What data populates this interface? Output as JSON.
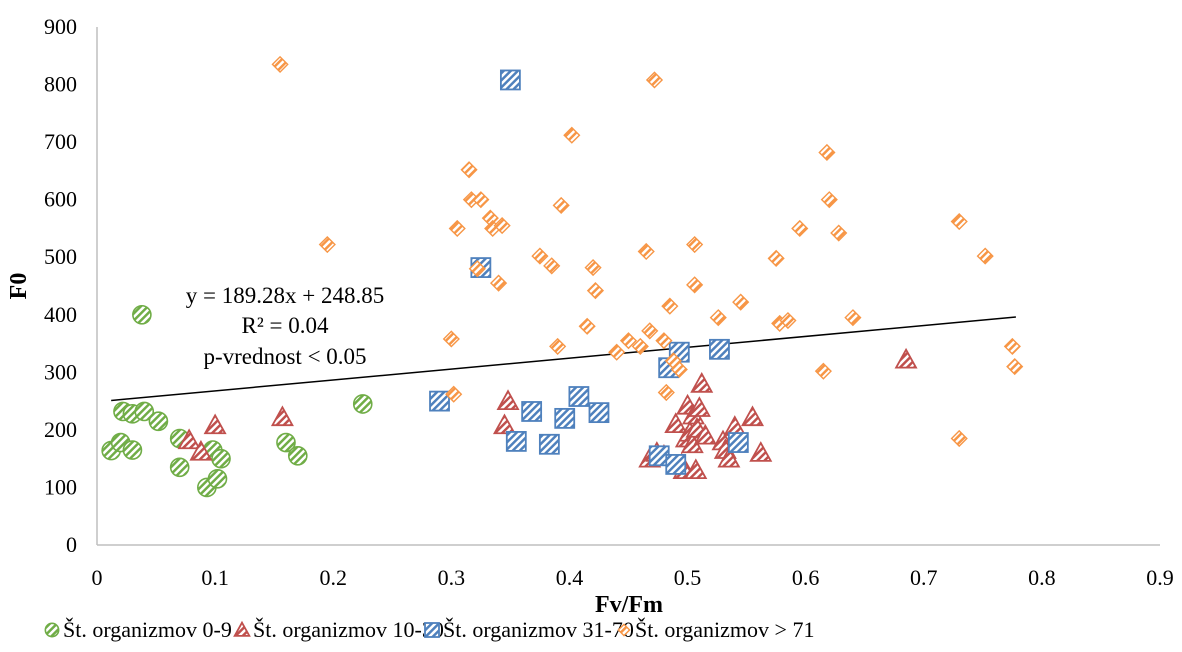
{
  "chart_data": {
    "type": "scatter",
    "xlabel": "Fv/Fm",
    "ylabel": "F0",
    "xlim": [
      0,
      0.9
    ],
    "ylim": [
      0,
      900
    ],
    "x_ticks": [
      "0",
      "0.1",
      "0.2",
      "0.3",
      "0.4",
      "0.5",
      "0.6",
      "0.7",
      "0.8",
      "0.9"
    ],
    "y_ticks": [
      "0",
      "100",
      "200",
      "300",
      "400",
      "500",
      "600",
      "700",
      "800",
      "900"
    ],
    "grid": false,
    "legend_position": "bottom",
    "annotations": [
      "y = 189.28x + 248.85",
      "R² = 0.04",
      "p-vrednost < 0.05"
    ],
    "trendline": {
      "slope": 189.28,
      "intercept": 248.85,
      "x_range": [
        0.012,
        0.778
      ],
      "color": "#000000"
    },
    "series": [
      {
        "name": "Št. organizmov 0-9",
        "marker": "circle",
        "color": "#70ad47",
        "points": [
          [
            0.012,
            164
          ],
          [
            0.02,
            178
          ],
          [
            0.022,
            232
          ],
          [
            0.03,
            228
          ],
          [
            0.03,
            165
          ],
          [
            0.038,
            400
          ],
          [
            0.04,
            232
          ],
          [
            0.052,
            215
          ],
          [
            0.07,
            185
          ],
          [
            0.07,
            135
          ],
          [
            0.093,
            100
          ],
          [
            0.098,
            165
          ],
          [
            0.102,
            115
          ],
          [
            0.105,
            150
          ],
          [
            0.16,
            178
          ],
          [
            0.17,
            155
          ],
          [
            0.225,
            245
          ]
        ]
      },
      {
        "name": "Št. organizmov 10-30",
        "marker": "triangle",
        "color": "#c0504d",
        "points": [
          [
            0.078,
            182
          ],
          [
            0.088,
            162
          ],
          [
            0.1,
            208
          ],
          [
            0.157,
            222
          ],
          [
            0.345,
            208
          ],
          [
            0.348,
            250
          ],
          [
            0.468,
            150
          ],
          [
            0.474,
            160
          ],
          [
            0.48,
            155
          ],
          [
            0.49,
            210
          ],
          [
            0.495,
            140
          ],
          [
            0.497,
            130
          ],
          [
            0.499,
            185
          ],
          [
            0.5,
            242
          ],
          [
            0.502,
            195
          ],
          [
            0.504,
            175
          ],
          [
            0.505,
            225
          ],
          [
            0.507,
            130
          ],
          [
            0.508,
            202
          ],
          [
            0.51,
            238
          ],
          [
            0.512,
            280
          ],
          [
            0.515,
            190
          ],
          [
            0.53,
            180
          ],
          [
            0.532,
            165
          ],
          [
            0.535,
            150
          ],
          [
            0.54,
            205
          ],
          [
            0.555,
            222
          ],
          [
            0.562,
            160
          ],
          [
            0.685,
            322
          ]
        ]
      },
      {
        "name": "Št. organizmov 31-70",
        "marker": "square",
        "color": "#4f81bd",
        "points": [
          [
            0.29,
            250
          ],
          [
            0.325,
            482
          ],
          [
            0.35,
            808
          ],
          [
            0.355,
            180
          ],
          [
            0.368,
            232
          ],
          [
            0.383,
            175
          ],
          [
            0.396,
            220
          ],
          [
            0.408,
            258
          ],
          [
            0.425,
            230
          ],
          [
            0.476,
            155
          ],
          [
            0.484,
            308
          ],
          [
            0.49,
            140
          ],
          [
            0.493,
            335
          ],
          [
            0.527,
            340
          ],
          [
            0.543,
            178
          ]
        ]
      },
      {
        "name": "Št. organizmov > 71",
        "marker": "diamond",
        "color": "#f79646",
        "points": [
          [
            0.155,
            835
          ],
          [
            0.195,
            522
          ],
          [
            0.3,
            358
          ],
          [
            0.302,
            262
          ],
          [
            0.305,
            550
          ],
          [
            0.315,
            652
          ],
          [
            0.317,
            600
          ],
          [
            0.322,
            480
          ],
          [
            0.325,
            600
          ],
          [
            0.333,
            568
          ],
          [
            0.335,
            550
          ],
          [
            0.34,
            455
          ],
          [
            0.343,
            555
          ],
          [
            0.375,
            502
          ],
          [
            0.385,
            485
          ],
          [
            0.39,
            345
          ],
          [
            0.393,
            590
          ],
          [
            0.402,
            712
          ],
          [
            0.415,
            380
          ],
          [
            0.42,
            482
          ],
          [
            0.422,
            442
          ],
          [
            0.44,
            335
          ],
          [
            0.45,
            355
          ],
          [
            0.46,
            345
          ],
          [
            0.465,
            510
          ],
          [
            0.468,
            372
          ],
          [
            0.472,
            808
          ],
          [
            0.48,
            355
          ],
          [
            0.482,
            265
          ],
          [
            0.485,
            415
          ],
          [
            0.488,
            320
          ],
          [
            0.493,
            305
          ],
          [
            0.506,
            522
          ],
          [
            0.506,
            452
          ],
          [
            0.526,
            395
          ],
          [
            0.545,
            422
          ],
          [
            0.575,
            498
          ],
          [
            0.578,
            385
          ],
          [
            0.585,
            390
          ],
          [
            0.595,
            550
          ],
          [
            0.615,
            302
          ],
          [
            0.618,
            682
          ],
          [
            0.62,
            600
          ],
          [
            0.628,
            542
          ],
          [
            0.64,
            395
          ],
          [
            0.73,
            562
          ],
          [
            0.73,
            185
          ],
          [
            0.752,
            502
          ],
          [
            0.775,
            345
          ],
          [
            0.777,
            310
          ]
        ]
      }
    ]
  }
}
